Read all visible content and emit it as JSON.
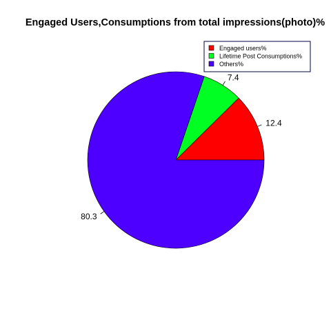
{
  "chart_data": {
    "type": "pie",
    "title": "Engaged Users,Consumptions from total impressions(photo)%",
    "slices": [
      {
        "label": "Engaged users%",
        "value": 12.4,
        "display": "12.4",
        "color": "#ff0000"
      },
      {
        "label": "Lifetime Post Consumptions%",
        "value": 7.4,
        "display": "7.4",
        "color": "#00ff22"
      },
      {
        "label": "Others%",
        "value": 80.3,
        "display": "80.3",
        "color": "#4d00ff"
      }
    ],
    "start_angle_deg": 0,
    "direction": "counterclockwise",
    "legend_position": "top-right",
    "border_color": "#000000"
  }
}
